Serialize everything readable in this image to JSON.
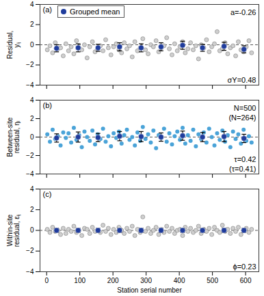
{
  "chart_data": [
    {
      "type": "scatter",
      "title": "(a)",
      "ylabel": "Residual,\nyᵢⱼ",
      "xlim": [
        -20,
        640
      ],
      "xticks": [
        0,
        100,
        200,
        300,
        400,
        500,
        600
      ],
      "ylim": [
        -4,
        4
      ],
      "yticks": [
        -4,
        -2,
        0,
        2,
        4
      ],
      "tick_labels": "y",
      "reference_y": 0,
      "legend": "top-left",
      "points": {
        "color": "#cfcfcf",
        "marker": "circle",
        "x": [
          2,
          10,
          18,
          26,
          34,
          42,
          50,
          58,
          66,
          74,
          82,
          90,
          98,
          106,
          114,
          122,
          130,
          138,
          146,
          154,
          162,
          170,
          178,
          186,
          194,
          202,
          210,
          218,
          226,
          234,
          242,
          250,
          258,
          266,
          274,
          282,
          290,
          298,
          306,
          314,
          322,
          330,
          338,
          346,
          354,
          362,
          370,
          378,
          386,
          394,
          402,
          410,
          418,
          426,
          434,
          442,
          450,
          458,
          466,
          474,
          482,
          490,
          498,
          506,
          514,
          522,
          530,
          538,
          546,
          554,
          562,
          570,
          578,
          586,
          594,
          602,
          610,
          618
        ],
        "values": [
          -0.5,
          -0.1,
          -0.8,
          0.2,
          -0.4,
          -0.3,
          -1.1,
          0.1,
          -0.6,
          -0.2,
          -0.9,
          0.4,
          -0.3,
          -0.5,
          0.0,
          -1.3,
          -0.2,
          0.3,
          -0.7,
          -0.4,
          -0.1,
          -0.6,
          0.5,
          -0.3,
          -1.0,
          -0.2,
          0.1,
          -0.5,
          -0.8,
          0.2,
          -0.4,
          -0.1,
          -1.2,
          0.3,
          -0.6,
          -0.3,
          0.6,
          -0.5,
          -0.9,
          0.0,
          -0.2,
          0.4,
          -0.7,
          -0.3,
          -0.1,
          0.7,
          -0.4,
          -1.0,
          0.1,
          -0.6,
          -0.2,
          0.3,
          -0.8,
          -0.4,
          0.2,
          -0.5,
          -0.1,
          -1.4,
          0.0,
          -0.3,
          0.5,
          -0.7,
          -0.2,
          0.1,
          1.3,
          -0.6,
          -0.4,
          0.2,
          -0.9,
          -0.3,
          -0.1,
          -1.1,
          0.3,
          -0.5,
          -0.7,
          -0.2,
          0.4,
          -0.8
        ]
      },
      "grouped_mean": {
        "name": "Grouped mean",
        "color": "#1f3c9c",
        "x": [
          30,
          95,
          155,
          220,
          285,
          345,
          410,
          470,
          535,
          595
        ],
        "values": [
          -0.35,
          -0.3,
          -0.3,
          -0.2,
          -0.3,
          -0.2,
          -0.05,
          -0.3,
          -0.15,
          -0.45
        ],
        "error": [
          0.35,
          0.4,
          0.35,
          0.4,
          0.4,
          0.4,
          0.4,
          0.35,
          0.4,
          0.35
        ]
      },
      "annotations_top": [
        "a=-0.26"
      ],
      "annotations_bottom": [
        "σY=0.48"
      ]
    },
    {
      "type": "scatter",
      "title": "(b)",
      "ylabel": "Between-site\nresidual, ηᵢ",
      "xlim": [
        -20,
        640
      ],
      "xticks": [
        0,
        100,
        200,
        300,
        400,
        500,
        600
      ],
      "ylim": [
        -4,
        4
      ],
      "yticks": [
        -4,
        -2,
        0,
        2,
        4
      ],
      "tick_labels": "y",
      "reference_y": 0,
      "points": {
        "color": "#4aa3d8",
        "marker": "circle",
        "x": [
          2,
          10,
          18,
          26,
          34,
          42,
          50,
          58,
          66,
          74,
          82,
          90,
          98,
          106,
          114,
          122,
          130,
          138,
          146,
          154,
          162,
          170,
          178,
          186,
          194,
          202,
          210,
          218,
          226,
          234,
          242,
          250,
          258,
          266,
          274,
          282,
          290,
          298,
          306,
          314,
          322,
          330,
          338,
          346,
          354,
          362,
          370,
          378,
          386,
          394,
          402,
          410,
          418,
          426,
          434,
          442,
          450,
          458,
          466,
          474,
          482,
          490,
          498,
          506,
          514,
          522,
          530,
          538,
          546,
          554,
          562,
          570,
          578,
          586,
          594,
          602,
          610,
          618
        ],
        "values": [
          0.3,
          -0.5,
          0.8,
          -0.2,
          0.1,
          -0.9,
          0.5,
          -0.1,
          0.4,
          -0.6,
          1.0,
          -0.3,
          0.2,
          -1.1,
          0.6,
          0.0,
          -0.4,
          0.7,
          -0.8,
          0.3,
          -0.2,
          0.9,
          -0.5,
          0.1,
          -1.0,
          0.4,
          -0.1,
          0.6,
          -0.7,
          0.2,
          0.8,
          -0.3,
          0.0,
          -0.9,
          0.5,
          -0.4,
          1.1,
          -0.2,
          0.3,
          -0.6,
          0.7,
          -1.2,
          0.2,
          -0.1,
          0.9,
          -0.5,
          0.4,
          -0.8,
          0.1,
          0.6,
          -0.3,
          1.0,
          -0.7,
          0.2,
          -0.4,
          0.8,
          -1.0,
          0.3,
          -0.2,
          0.5,
          -0.6,
          0.9,
          0.0,
          -0.9,
          0.4,
          -0.3,
          0.7,
          -0.5,
          0.2,
          -1.1,
          0.6,
          -0.2,
          0.3,
          -0.7,
          0.8,
          -0.4,
          0.1,
          -0.6
        ]
      },
      "grouped_mean": {
        "name": "Grouped mean",
        "color": "#1f3c9c",
        "x": [
          30,
          95,
          155,
          220,
          285,
          345,
          410,
          470,
          535,
          595
        ],
        "values": [
          -0.1,
          0.0,
          -0.05,
          0.1,
          0.05,
          0.0,
          0.15,
          0.0,
          0.05,
          -0.15
        ],
        "error": [
          0.45,
          0.55,
          0.45,
          0.5,
          0.55,
          0.45,
          0.5,
          0.5,
          0.55,
          0.45
        ]
      },
      "annotations_top": [
        "N=500",
        "(N=264)"
      ],
      "annotations_bottom": [
        "τ=0.42",
        "(τ=0.41)"
      ]
    },
    {
      "type": "scatter",
      "title": "(c)",
      "ylabel": "Within-site\nresidual, εᵢⱼ",
      "xlabel": "Station serial number",
      "xlim": [
        -20,
        640
      ],
      "xticks": [
        0,
        100,
        200,
        300,
        400,
        500,
        600
      ],
      "ylim": [
        -4,
        4
      ],
      "yticks": [
        -4,
        -2,
        0,
        2,
        4
      ],
      "reference_y": 0,
      "points": {
        "color": "#cfcfcf",
        "marker": "circle",
        "x": [
          2,
          10,
          18,
          26,
          34,
          42,
          50,
          58,
          66,
          74,
          82,
          90,
          98,
          106,
          114,
          122,
          130,
          138,
          146,
          154,
          162,
          170,
          178,
          186,
          194,
          202,
          210,
          218,
          226,
          234,
          242,
          250,
          258,
          266,
          274,
          282,
          290,
          298,
          306,
          314,
          322,
          330,
          338,
          346,
          354,
          362,
          370,
          378,
          386,
          394,
          402,
          410,
          418,
          426,
          434,
          442,
          450,
          458,
          466,
          474,
          482,
          490,
          498,
          506,
          514,
          522,
          530,
          538,
          546,
          554,
          562,
          570,
          578,
          586,
          594,
          602,
          610,
          618
        ],
        "values": [
          0.1,
          -0.2,
          0.3,
          -0.1,
          0.0,
          -0.4,
          0.2,
          -0.3,
          0.1,
          -0.1,
          0.4,
          -0.2,
          0.0,
          -0.5,
          0.2,
          0.1,
          -0.3,
          0.3,
          -0.1,
          0.0,
          -0.2,
          0.5,
          -0.1,
          0.2,
          -0.4,
          0.1,
          -0.2,
          0.3,
          0.0,
          -0.3,
          0.2,
          -0.1,
          0.4,
          -0.5,
          0.1,
          -0.2,
          1.3,
          -0.1,
          0.2,
          -0.3,
          0.0,
          0.3,
          -0.4,
          0.1,
          -0.2,
          0.4,
          -0.1,
          0.2,
          -0.3,
          0.0,
          0.1,
          -0.5,
          0.3,
          -0.1,
          0.2,
          -0.2,
          0.0,
          0.4,
          -0.3,
          0.1,
          -0.1,
          0.2,
          -0.4,
          0.3,
          0.0,
          -0.2,
          0.5,
          -0.1,
          0.1,
          -0.3,
          0.2,
          -0.1,
          0.3,
          -0.4,
          0.0,
          0.2,
          -0.2,
          0.1
        ]
      },
      "grouped_mean": {
        "name": "Grouped mean",
        "color": "#1f3c9c",
        "x": [
          30,
          95,
          155,
          220,
          285,
          345,
          410,
          470,
          535,
          595
        ],
        "values": [
          0,
          0,
          0,
          0,
          0,
          0,
          0,
          0,
          0,
          0
        ],
        "error": [
          0.2,
          0.2,
          0.2,
          0.2,
          0.2,
          0.2,
          0.2,
          0.2,
          0.2,
          0.2
        ]
      },
      "annotations_top": [],
      "annotations_bottom": [
        "ϕ=0.23"
      ]
    }
  ]
}
